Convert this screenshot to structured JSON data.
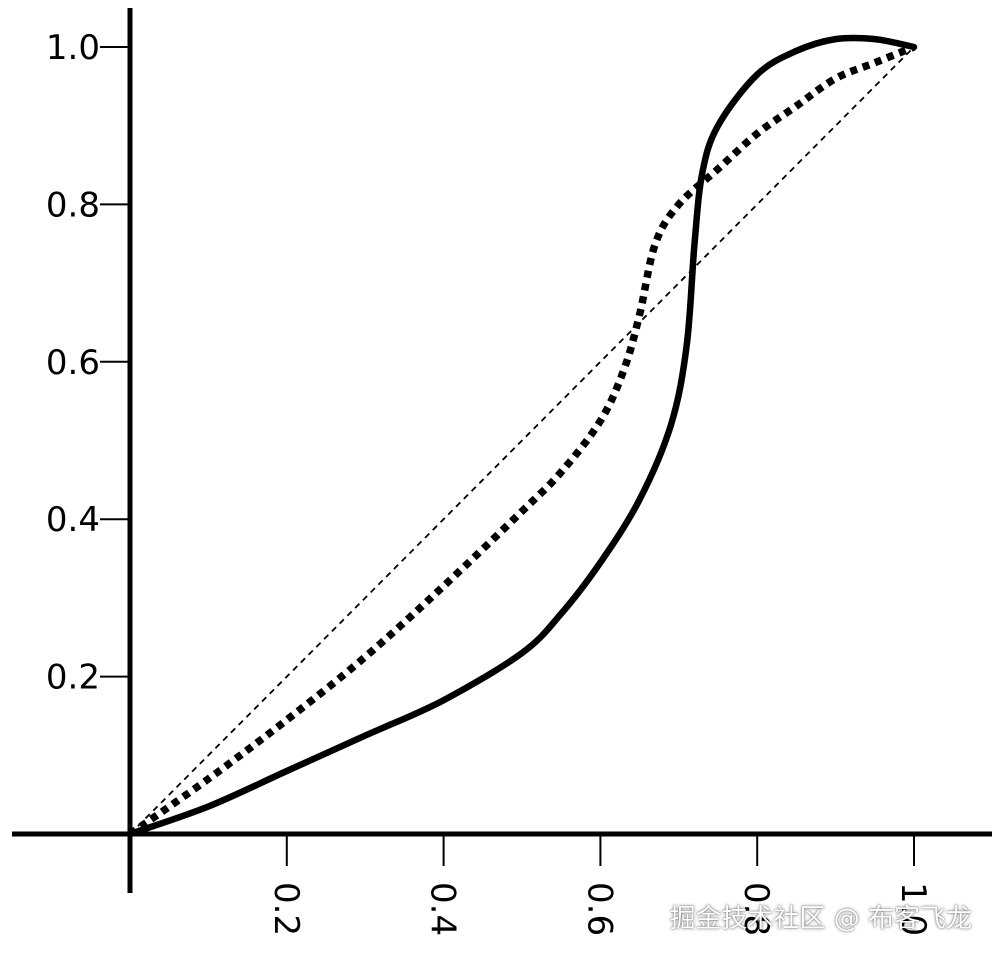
{
  "chart_data": {
    "type": "line",
    "title": "",
    "xlabel": "",
    "ylabel": "",
    "xlim": [
      0,
      1.0
    ],
    "ylim": [
      0,
      1.0
    ],
    "x_ticks": [
      {
        "value": 0.2,
        "label": "0.2"
      },
      {
        "value": 0.4,
        "label": "0.4"
      },
      {
        "value": 0.6,
        "label": "0.6"
      },
      {
        "value": 0.8,
        "label": "0.8"
      },
      {
        "value": 1.0,
        "label": "1.0"
      }
    ],
    "y_ticks": [
      {
        "value": 0.2,
        "label": "0.2"
      },
      {
        "value": 0.4,
        "label": "0.4"
      },
      {
        "value": 0.6,
        "label": "0.6"
      },
      {
        "value": 0.8,
        "label": "0.8"
      },
      {
        "value": 1.0,
        "label": "1.0"
      }
    ],
    "grid": false,
    "legend": "none",
    "series": [
      {
        "style": "thin-dashed",
        "color": "#000000",
        "points": [
          [
            0,
            0
          ],
          [
            1.0,
            1.0
          ]
        ]
      },
      {
        "style": "thick-dotted",
        "color": "#000000",
        "points": [
          [
            0,
            0
          ],
          [
            0.1,
            0.07
          ],
          [
            0.2,
            0.145
          ],
          [
            0.3,
            0.225
          ],
          [
            0.4,
            0.315
          ],
          [
            0.5,
            0.41
          ],
          [
            0.55,
            0.46
          ],
          [
            0.6,
            0.525
          ],
          [
            0.63,
            0.59
          ],
          [
            0.65,
            0.66
          ],
          [
            0.67,
            0.75
          ],
          [
            0.7,
            0.8
          ],
          [
            0.75,
            0.845
          ],
          [
            0.8,
            0.89
          ],
          [
            0.85,
            0.925
          ],
          [
            0.9,
            0.96
          ],
          [
            0.95,
            0.98
          ],
          [
            1.0,
            1.0
          ]
        ]
      },
      {
        "style": "thick-solid",
        "color": "#000000",
        "points": [
          [
            0,
            0
          ],
          [
            0.1,
            0.035
          ],
          [
            0.2,
            0.08
          ],
          [
            0.3,
            0.125
          ],
          [
            0.4,
            0.17
          ],
          [
            0.5,
            0.23
          ],
          [
            0.55,
            0.28
          ],
          [
            0.6,
            0.345
          ],
          [
            0.65,
            0.425
          ],
          [
            0.69,
            0.52
          ],
          [
            0.71,
            0.62
          ],
          [
            0.72,
            0.75
          ],
          [
            0.73,
            0.84
          ],
          [
            0.75,
            0.9
          ],
          [
            0.8,
            0.965
          ],
          [
            0.85,
            0.995
          ],
          [
            0.9,
            1.01
          ],
          [
            0.95,
            1.01
          ],
          [
            1.0,
            1.0
          ]
        ]
      }
    ]
  },
  "watermark": "掘金技术社区 @ 布客飞龙"
}
